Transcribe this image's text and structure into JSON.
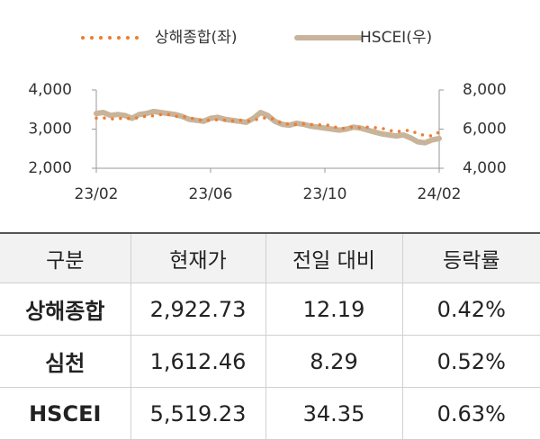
{
  "chart_data": {
    "type": "line",
    "categories": [
      "23/02",
      null,
      null,
      null,
      null,
      null,
      null,
      null,
      null,
      null,
      null,
      null,
      null,
      null,
      null,
      null,
      "23/06",
      null,
      null,
      null,
      null,
      null,
      null,
      null,
      null,
      null,
      null,
      null,
      null,
      null,
      null,
      null,
      "23/10",
      null,
      null,
      null,
      null,
      null,
      null,
      null,
      null,
      null,
      null,
      null,
      null,
      null,
      null,
      null,
      "24/02"
    ],
    "series": [
      {
        "name": "상해종합(좌)",
        "color": "#ed7d31",
        "style": "dotted",
        "values": [
          3280,
          3290,
          3260,
          3270,
          3280,
          3260,
          3300,
          3330,
          3340,
          3370,
          3380,
          3330,
          3320,
          3300,
          3240,
          3220,
          3230,
          3240,
          3230,
          3210,
          3230,
          3200,
          3220,
          3280,
          3290,
          3250,
          3140,
          3130,
          3120,
          3130,
          3120,
          3110,
          3110,
          3090,
          3010,
          3020,
          3060,
          3030,
          3050,
          3040,
          3020,
          2970,
          2930,
          2960,
          2970,
          2880,
          2840,
          2830,
          2920
        ]
      },
      {
        "name": "HSCEI(우)",
        "color": "#c8b49a",
        "style": "solid",
        "axis": "y2",
        "values": [
          6800,
          6850,
          6700,
          6750,
          6700,
          6550,
          6750,
          6800,
          6900,
          6850,
          6800,
          6750,
          6650,
          6500,
          6450,
          6400,
          6550,
          6600,
          6500,
          6450,
          6400,
          6350,
          6550,
          6850,
          6700,
          6400,
          6250,
          6200,
          6300,
          6250,
          6150,
          6100,
          6050,
          6000,
          5950,
          6000,
          6100,
          6050,
          5950,
          5850,
          5750,
          5700,
          5650,
          5700,
          5550,
          5350,
          5300,
          5450,
          5520
        ]
      }
    ],
    "ylim": [
      2000,
      4000
    ],
    "yticks": [
      {
        "value": 2000,
        "label": "2,000"
      },
      {
        "value": 3000,
        "label": "3,000"
      },
      {
        "value": 4000,
        "label": "4,000"
      }
    ],
    "y2lim": [
      4000,
      8000
    ],
    "y2ticks": [
      {
        "value": 4000,
        "label": "4,000"
      },
      {
        "value": 6000,
        "label": "6,000"
      },
      {
        "value": 8000,
        "label": "8,000"
      }
    ],
    "legend": "top"
  },
  "table": {
    "header": [
      "구분",
      "현재가",
      "전일 대비",
      "등락률"
    ],
    "rows": [
      [
        "상해종합",
        "2,922.73",
        "12.19",
        "0.42%"
      ],
      [
        "심천",
        "1,612.46",
        "8.29",
        "0.52%"
      ],
      [
        "HSCEI",
        "5,519.23",
        "34.35",
        "0.63%"
      ]
    ]
  }
}
